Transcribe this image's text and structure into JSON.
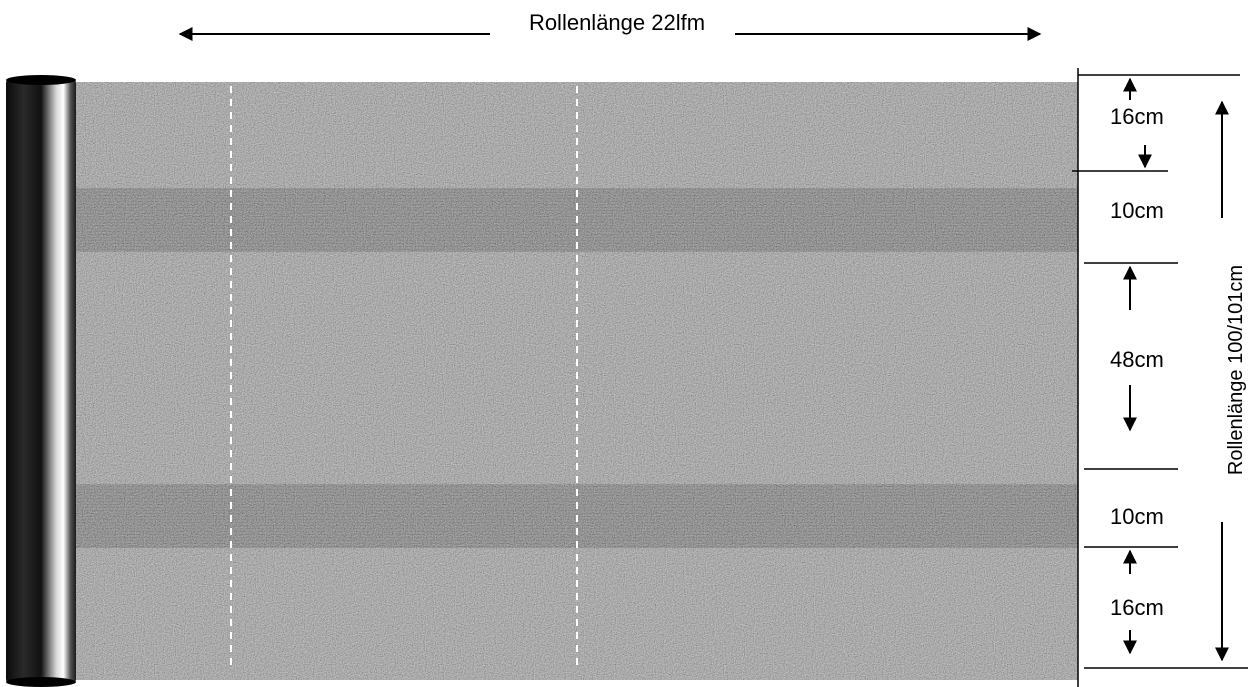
{
  "roll_length_label": "Rollenlänge 22lfm",
  "roll_width_label": "Rollenlänge 100/101cm",
  "segments": [
    {
      "label": "16cm",
      "value_cm": 16
    },
    {
      "label": "10cm",
      "value_cm": 10
    },
    {
      "label": "48cm",
      "value_cm": 48
    },
    {
      "label": "10cm",
      "value_cm": 10
    },
    {
      "label": "16cm",
      "value_cm": 16
    }
  ],
  "colors": {
    "fabric": "#8c8c8c",
    "stripe": "#5e5e5e",
    "roll": "#111111",
    "marking": "#ffffff",
    "line": "#000000"
  }
}
